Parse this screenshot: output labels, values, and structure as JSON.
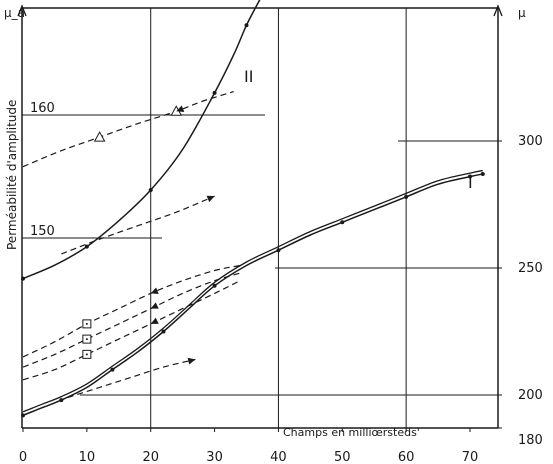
{
  "chart_data": {
    "type": "line",
    "xlabel": "Champs en milliœrsteds'",
    "ylabel_left": "Perméabilité d'amplitude",
    "ylabel_left_symbol": "μ_a",
    "ylabel_right_symbol": "μ",
    "xlim": [
      0,
      72
    ],
    "x_ticks": [
      0,
      10,
      20,
      30,
      40,
      50,
      60,
      70
    ],
    "x_tick_labels": [
      "0",
      "10",
      "20",
      "30",
      "40",
      "50",
      "60",
      "70"
    ],
    "left_axis": {
      "ylim": [
        140,
        170
      ],
      "ticks": [
        150,
        160
      ],
      "tick_labels": [
        "150",
        "160"
      ]
    },
    "right_axis": {
      "ylim": [
        180,
        320
      ],
      "ticks": [
        180,
        200,
        250,
        300
      ],
      "tick_labels": [
        "180",
        "200",
        "250",
        "300"
      ]
    },
    "grid": true,
    "series": [
      {
        "name": "I",
        "axis": "right",
        "style": "solid",
        "marker": "dot",
        "x": [
          0,
          3,
          6,
          10,
          14,
          18,
          22,
          26,
          30,
          35,
          40,
          45,
          50,
          55,
          60,
          65,
          70,
          72
        ],
        "y": [
          192,
          195,
          198,
          203,
          210,
          217,
          225,
          234,
          243,
          251,
          257,
          263,
          268,
          273,
          278,
          283,
          286,
          287
        ]
      },
      {
        "name": "II",
        "axis": "left",
        "style": "solid",
        "marker": "dot",
        "x": [
          0,
          5,
          10,
          15,
          20,
          25,
          30,
          33,
          35,
          37,
          38.5
        ],
        "y": [
          146.7,
          147.8,
          149.3,
          151.4,
          153.9,
          157.2,
          161.8,
          164.9,
          167.3,
          169.3,
          170.8
        ]
      },
      {
        "name": "",
        "axis": "left",
        "style": "dashed",
        "marker": "triangle",
        "x": [
          0,
          6,
          12,
          18,
          24,
          28,
          33
        ],
        "y": [
          155.8,
          157.1,
          158.2,
          159.3,
          160.3,
          161.1,
          161.9
        ]
      },
      {
        "name": "",
        "axis": "left",
        "style": "dashed",
        "marker": "none",
        "x": [
          6,
          12,
          18,
          24,
          30
        ],
        "y": [
          148.7,
          149.9,
          151.0,
          152.1,
          153.4
        ]
      },
      {
        "name": "",
        "axis": "right",
        "style": "dashed",
        "marker": "square",
        "x": [
          0,
          5,
          10,
          15,
          20,
          25,
          30,
          34
        ],
        "y": [
          215,
          221,
          228,
          234,
          240,
          245,
          249,
          251
        ]
      },
      {
        "name": "",
        "axis": "right",
        "style": "dashed",
        "marker": "square",
        "x": [
          0,
          5,
          10,
          15,
          20,
          25,
          30,
          34
        ],
        "y": [
          211,
          216,
          222,
          228,
          234,
          240,
          245,
          248
        ]
      },
      {
        "name": "",
        "axis": "right",
        "style": "dashed",
        "marker": "square",
        "x": [
          0,
          5,
          10,
          15,
          20,
          25,
          30,
          34
        ],
        "y": [
          206,
          210,
          216,
          222,
          228,
          234,
          240,
          245
        ]
      },
      {
        "name": "",
        "axis": "right",
        "style": "dashed",
        "marker": "none",
        "x": [
          7,
          12,
          17,
          22,
          27
        ],
        "y": [
          199,
          203,
          207,
          211,
          214
        ]
      }
    ],
    "annotations": [
      "I",
      "II"
    ]
  }
}
